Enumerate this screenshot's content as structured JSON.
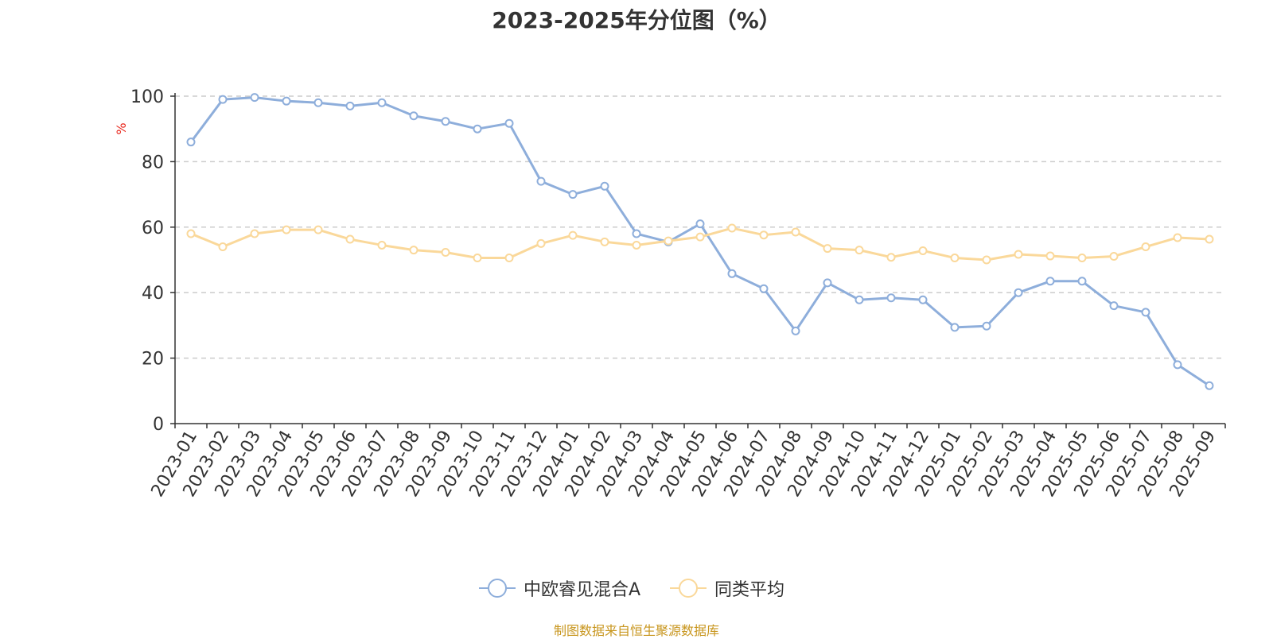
{
  "title": "2023-2025年分位图（%）",
  "source": "制图数据来自恒生聚源数据库",
  "legend": {
    "series1": "中欧睿见混合A",
    "series2": "同类平均"
  },
  "chart_data": {
    "type": "line",
    "title": "2023-2025年分位图（%）",
    "xlabel": "",
    "ylabel": "%",
    "ylim": [
      0,
      100
    ],
    "yticks": [
      0,
      20,
      40,
      60,
      80,
      100
    ],
    "grid": true,
    "legend_position": "bottom",
    "categories": [
      "2023-01",
      "2023-02",
      "2023-03",
      "2023-04",
      "2023-05",
      "2023-06",
      "2023-07",
      "2023-08",
      "2023-09",
      "2023-10",
      "2023-11",
      "2023-12",
      "2024-01",
      "2024-02",
      "2024-03",
      "2024-04",
      "2024-05",
      "2024-06",
      "2024-07",
      "2024-08",
      "2024-09",
      "2024-10",
      "2024-11",
      "2024-12",
      "2025-01",
      "2025-02",
      "2025-03",
      "2025-04",
      "2025-05",
      "2025-06",
      "2025-07",
      "2025-08",
      "2025-09"
    ],
    "series": [
      {
        "name": "中欧睿见混合A",
        "color": "#8eaedb",
        "values": [
          86,
          99,
          99.6,
          98.5,
          98,
          97,
          98,
          94,
          92.3,
          90,
          91.7,
          74,
          70,
          72.5,
          58,
          55.5,
          61,
          45.8,
          41.2,
          28.3,
          43,
          37.8,
          38.4,
          37.8,
          29.4,
          29.8,
          40,
          43.5,
          43.5,
          36,
          34,
          18,
          11.6
        ]
      },
      {
        "name": "同类平均",
        "color": "#fad89a",
        "values": [
          58,
          54,
          58,
          59.2,
          59.2,
          56.3,
          54.5,
          53,
          52.3,
          50.6,
          50.6,
          55,
          57.5,
          55.5,
          54.5,
          55.8,
          57,
          59.7,
          57.6,
          58.5,
          53.5,
          53,
          50.8,
          52.8,
          50.6,
          50,
          51.7,
          51.2,
          50.6,
          51.1,
          54,
          56.8,
          56.3
        ]
      }
    ]
  }
}
